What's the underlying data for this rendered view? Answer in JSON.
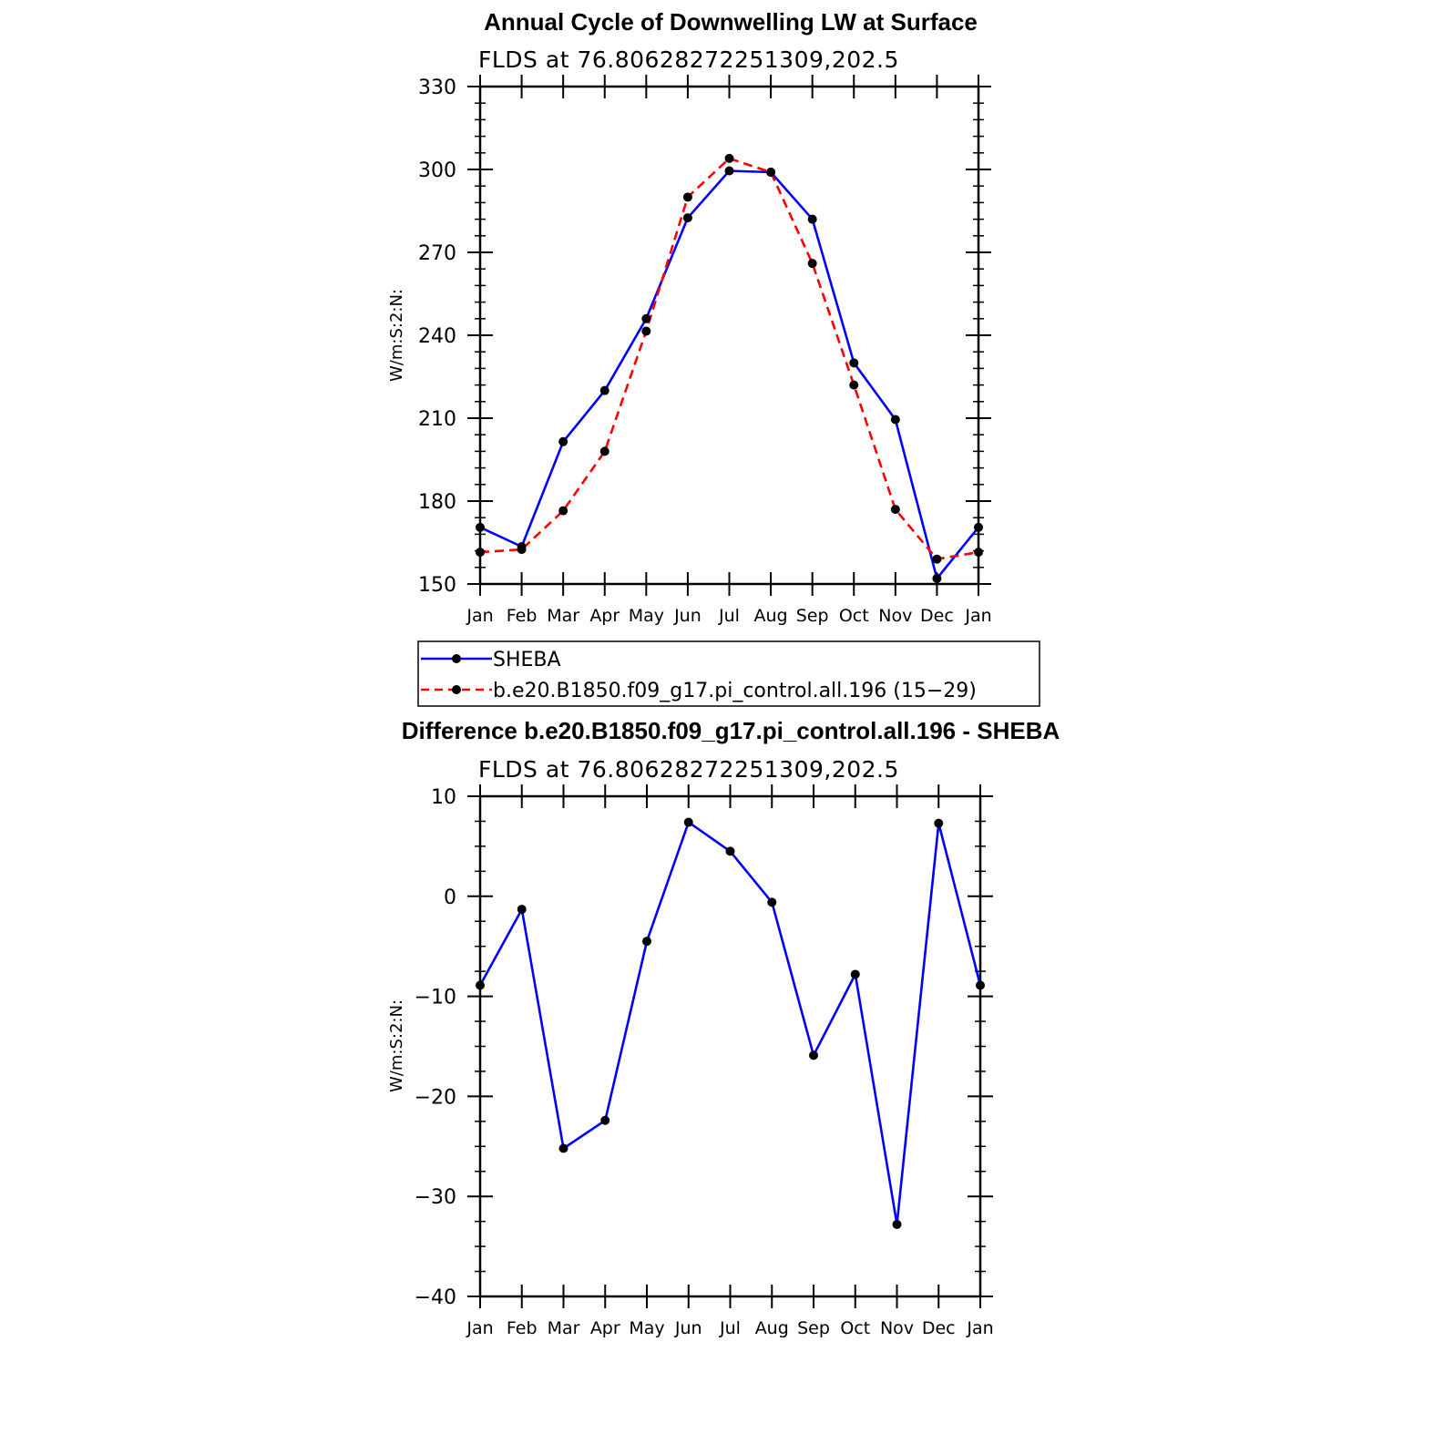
{
  "chart_data": [
    {
      "type": "line",
      "title": "Annual Cycle of Downwelling LW at Surface",
      "subtitle": "FLDS at 76.80628272251309,202.5",
      "ylabel": "W/m:S:2:N:",
      "xlabel": "",
      "categories": [
        "Jan",
        "Feb",
        "Mar",
        "Apr",
        "May",
        "Jun",
        "Jul",
        "Aug",
        "Sep",
        "Oct",
        "Nov",
        "Dec",
        "Jan"
      ],
      "ylim": [
        150,
        330
      ],
      "yticks": [
        150,
        180,
        210,
        240,
        270,
        300,
        330
      ],
      "ytick_labels": [
        "150",
        "180",
        "210",
        "240",
        "270",
        "300",
        "330"
      ],
      "series": [
        {
          "name": "SHEBA",
          "color": "#0000ff",
          "dash": "solid",
          "values": [
            170.5,
            163.5,
            201.5,
            220.0,
            246.0,
            282.5,
            299.5,
            299.0,
            282.0,
            230.0,
            209.5,
            152.0,
            170.5
          ]
        },
        {
          "name": "b.e20.B1850.f09_g17.pi_control.all.196 (15−29)",
          "color": "#ff0000",
          "dash": "dashed",
          "values": [
            161.5,
            162.5,
            176.5,
            198.0,
            241.5,
            290.0,
            304.0,
            299.0,
            266.0,
            222.0,
            177.0,
            159.0,
            161.5
          ]
        }
      ],
      "legend": {
        "placement": "below",
        "entries": [
          "SHEBA",
          "b.e20.B1850.f09_g17.pi_control.all.196 (15−29)"
        ]
      }
    },
    {
      "type": "line",
      "title": "Difference b.e20.B1850.f09_g17.pi_control.all.196 - SHEBA",
      "subtitle": "FLDS at 76.80628272251309,202.5",
      "ylabel": "W/m:S:2:N:",
      "xlabel": "",
      "categories": [
        "Jan",
        "Feb",
        "Mar",
        "Apr",
        "May",
        "Jun",
        "Jul",
        "Aug",
        "Sep",
        "Oct",
        "Nov",
        "Dec",
        "Jan"
      ],
      "ylim": [
        -40,
        10
      ],
      "yticks": [
        -40,
        -30,
        -20,
        -10,
        0,
        10
      ],
      "ytick_labels": [
        "−40",
        "−30",
        "−20",
        "−10",
        "0",
        "10"
      ],
      "series": [
        {
          "name": "Difference",
          "color": "#0000ff",
          "dash": "solid",
          "values": [
            -8.9,
            -1.3,
            -25.2,
            -22.4,
            -4.5,
            7.4,
            4.5,
            -0.6,
            -15.9,
            -7.8,
            -32.8,
            7.3,
            -8.9
          ]
        }
      ]
    }
  ]
}
